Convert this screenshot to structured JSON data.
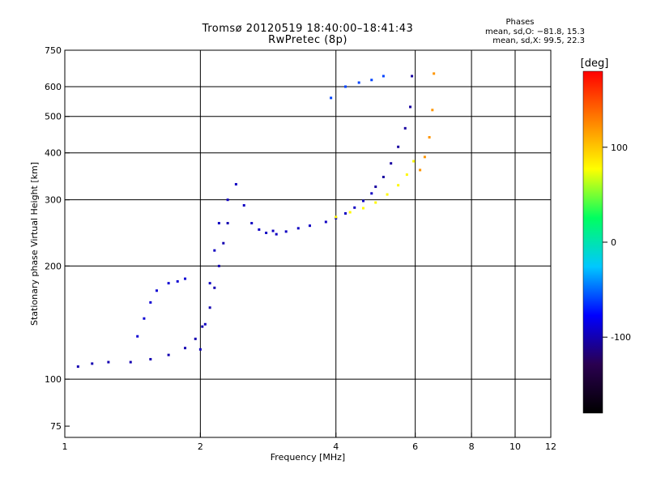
{
  "header": {
    "title": "Tromsø 20120519 18:40:00–18:41:43",
    "subtitle": "RwPretec (8p)"
  },
  "phases_box": {
    "title": "Phases",
    "line1": "mean, sd,O: −81.8, 15.3",
    "line2": "mean, sd,X:  99.5, 22.3"
  },
  "colors": {
    "grid": "#000000",
    "background": "#ffffff",
    "colorbar_stops": [
      "#000000",
      "#2a0050",
      "#0000ff",
      "#00c8ff",
      "#00ff60",
      "#ffff00",
      "#ff8000",
      "#ff0000"
    ]
  },
  "chart_data": {
    "type": "scatter",
    "xlabel": "Frequency [MHz]",
    "ylabel": "Stationary phase Virtual Height [km]",
    "x_scale": "log",
    "y_scale": "log",
    "xlim": [
      1,
      12
    ],
    "ylim": [
      70,
      750
    ],
    "grid": true,
    "x_ticks": [
      1,
      2,
      4,
      6,
      8,
      10,
      12
    ],
    "y_ticks": [
      75,
      100,
      200,
      300,
      400,
      500,
      600,
      750
    ],
    "x_gridlines": [
      2,
      4,
      6,
      8,
      10
    ],
    "y_gridlines": [
      100,
      200,
      300,
      400,
      500,
      600
    ],
    "colorbar": {
      "label": "[deg]",
      "range": [
        -180,
        180
      ],
      "ticks": [
        100,
        0,
        -100
      ]
    },
    "series": [
      {
        "x": [
          1.07,
          1.15,
          1.25,
          1.4,
          1.55,
          1.7,
          1.85,
          1.95,
          2.02,
          2.1,
          2.15,
          2.2,
          2.25,
          2.3
        ],
        "y": [
          108,
          110,
          111,
          111,
          113,
          116,
          121,
          128,
          138,
          155,
          175,
          200,
          230,
          260
        ],
        "phase": -100
      },
      {
        "x": [
          1.45,
          1.5,
          1.55,
          1.6,
          1.7,
          1.78,
          1.85
        ],
        "y": [
          130,
          145,
          160,
          172,
          180,
          182,
          185
        ],
        "phase": -90
      },
      {
        "x": [
          2.0,
          2.05,
          2.1,
          2.15,
          2.2,
          2.3,
          2.4,
          2.5,
          2.6,
          2.7,
          2.8,
          2.9
        ],
        "y": [
          120,
          140,
          180,
          220,
          260,
          300,
          330,
          290,
          260,
          250,
          245,
          248
        ],
        "phase": -95
      },
      {
        "x": [
          2.95,
          3.1,
          3.3,
          3.5,
          3.8,
          4.0,
          4.2,
          4.4,
          4.6,
          4.8
        ],
        "y": [
          243,
          247,
          252,
          256,
          262,
          268,
          276,
          286,
          298,
          312
        ],
        "phase": -95
      },
      {
        "x": [
          4.9,
          5.1,
          5.3,
          5.5,
          5.7,
          5.85,
          5.9
        ],
        "y": [
          325,
          345,
          375,
          415,
          465,
          530,
          640
        ],
        "phase": -105
      },
      {
        "x": [
          4.0,
          4.3,
          4.6,
          4.9,
          5.2,
          5.5,
          5.75,
          5.95
        ],
        "y": [
          270,
          278,
          285,
          295,
          310,
          328,
          350,
          380
        ],
        "phase": 80
      },
      {
        "x": [
          6.15,
          6.3,
          6.45,
          6.55,
          6.6
        ],
        "y": [
          360,
          390,
          440,
          520,
          650
        ],
        "phase": 120
      },
      {
        "x": [
          3.9,
          4.2,
          4.5,
          4.8,
          5.1
        ],
        "y": [
          560,
          600,
          615,
          625,
          640
        ],
        "phase": -60
      }
    ]
  }
}
